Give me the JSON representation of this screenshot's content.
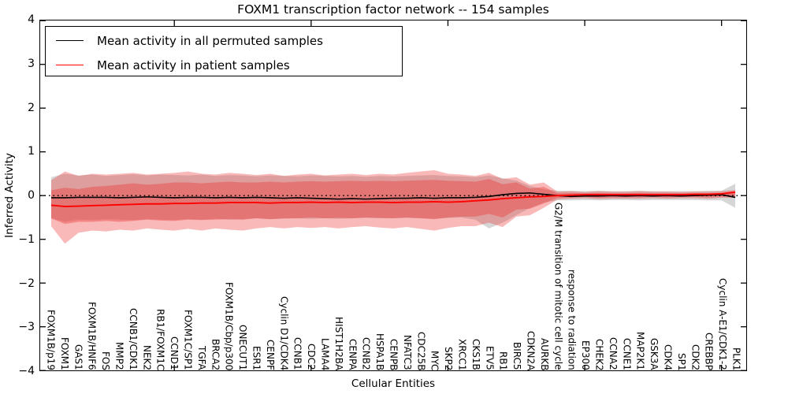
{
  "title": "FOXM1 transcription factor network -- 154 samples",
  "axes": {
    "ylabel": "Inferred Activity",
    "xlabel": "Cellular Entities",
    "ytick_labels": [
      "4",
      "3",
      "2",
      "1",
      "0",
      "−1",
      "−2",
      "−3",
      "−4"
    ]
  },
  "legend": {
    "items": [
      {
        "label": "Mean activity in all permuted samples",
        "color": "#000000"
      },
      {
        "label": "Mean activity in patient samples",
        "color": "#ff0000"
      }
    ],
    "position": "upper left"
  },
  "chart_data": {
    "type": "line",
    "title": "FOXM1 transcription factor network -- 154 samples",
    "xlabel": "Cellular Entities",
    "ylabel": "Inferred Activity",
    "ylim": [
      -4,
      4
    ],
    "yticks": [
      4,
      3,
      2,
      1,
      0,
      -1,
      -2,
      -3,
      -4
    ],
    "major_tick_indices": [
      9,
      19,
      29,
      39,
      49
    ],
    "grid": false,
    "legend_position": "upper left",
    "baseline": {
      "y": 0,
      "style": "dotted",
      "color": "#000000"
    },
    "categories": [
      "FOXM1B/p19",
      "FOXM1",
      "GAS1",
      "FOXM1B/HNF6",
      "FOS",
      "MMP2",
      "CCNB1/CDK1",
      "NEK2",
      "RB1/FOXM1C",
      "CCND1",
      "FOXM1C/SP1",
      "TGFA",
      "BRCA2",
      "FOXM1B/Cbp/p300",
      "ONECUT1",
      "ESR1",
      "CENPF",
      "Cyclin D1/CDK4",
      "CCNB1",
      "CDC2",
      "LAMA4",
      "HIST1H2BA",
      "CENPA",
      "CCNB2",
      "HSPA1B",
      "CENPB",
      "NFATC3",
      "CDC25B",
      "MYC",
      "SKP2",
      "XRCC1",
      "CKS1B",
      "ETV5",
      "RB1",
      "BIRC5",
      "CDKN2A",
      "AURKB",
      "G2/M transition of mitotic cell cycle",
      "response to radiation",
      "EP300",
      "CHEK2",
      "CCNA2",
      "CCNE1",
      "MAP2K1",
      "GSK3A",
      "CDK4",
      "SP1",
      "CDK2",
      "CREBBP",
      "Cyclin A-E1/CDK1-2",
      "PLK1"
    ],
    "series": [
      {
        "name": "Mean activity in all permuted samples",
        "color": "#000000",
        "values": [
          -0.05,
          -0.05,
          -0.04,
          -0.04,
          -0.04,
          -0.05,
          -0.04,
          -0.03,
          -0.04,
          -0.05,
          -0.04,
          -0.04,
          -0.05,
          -0.04,
          -0.05,
          -0.04,
          -0.05,
          -0.06,
          -0.05,
          -0.06,
          -0.07,
          -0.08,
          -0.07,
          -0.08,
          -0.07,
          -0.06,
          -0.06,
          -0.05,
          -0.06,
          -0.05,
          -0.05,
          -0.04,
          -0.02,
          0.02,
          0.05,
          0.06,
          0.03,
          0.0,
          -0.02,
          -0.01,
          -0.01,
          0.0,
          -0.01,
          0.0,
          -0.01,
          0.0,
          -0.01,
          0.0,
          0.01,
          0.02,
          -0.04
        ]
      },
      {
        "name": "Mean activity in patient samples",
        "color": "#ff0000",
        "values": [
          -0.22,
          -0.25,
          -0.24,
          -0.23,
          -0.22,
          -0.21,
          -0.2,
          -0.19,
          -0.19,
          -0.18,
          -0.18,
          -0.17,
          -0.17,
          -0.16,
          -0.16,
          -0.16,
          -0.17,
          -0.16,
          -0.16,
          -0.15,
          -0.16,
          -0.15,
          -0.16,
          -0.15,
          -0.15,
          -0.16,
          -0.15,
          -0.15,
          -0.14,
          -0.15,
          -0.14,
          -0.12,
          -0.1,
          -0.07,
          -0.05,
          -0.03,
          -0.02,
          0.0,
          0.01,
          0.02,
          0.02,
          0.02,
          0.02,
          0.02,
          0.02,
          0.02,
          0.02,
          0.03,
          0.03,
          0.04,
          0.08
        ]
      }
    ],
    "bands": [
      {
        "name": "permuted-samples-std-band",
        "color": "#999999",
        "opacity": 0.4,
        "top": [
          0.42,
          0.5,
          0.46,
          0.48,
          0.45,
          0.47,
          0.49,
          0.46,
          0.48,
          0.47,
          0.46,
          0.48,
          0.45,
          0.47,
          0.46,
          0.44,
          0.46,
          0.45,
          0.44,
          0.46,
          0.45,
          0.44,
          0.45,
          0.43,
          0.45,
          0.44,
          0.45,
          0.46,
          0.47,
          0.45,
          0.44,
          0.42,
          0.46,
          0.4,
          0.34,
          0.22,
          0.14,
          0.11,
          0.11,
          0.1,
          0.11,
          0.1,
          0.1,
          0.11,
          0.1,
          0.1,
          0.1,
          0.1,
          0.11,
          0.11,
          0.27
        ],
        "bottom": [
          -0.52,
          -0.6,
          -0.55,
          -0.56,
          -0.54,
          -0.55,
          -0.56,
          -0.54,
          -0.55,
          -0.56,
          -0.54,
          -0.55,
          -0.53,
          -0.55,
          -0.54,
          -0.52,
          -0.54,
          -0.53,
          -0.52,
          -0.53,
          -0.52,
          -0.53,
          -0.52,
          -0.51,
          -0.52,
          -0.52,
          -0.51,
          -0.52,
          -0.53,
          -0.51,
          -0.5,
          -0.55,
          -0.75,
          -0.62,
          -0.45,
          -0.28,
          -0.16,
          -0.11,
          -0.11,
          -0.1,
          -0.11,
          -0.1,
          -0.1,
          -0.11,
          -0.1,
          -0.1,
          -0.1,
          -0.1,
          -0.11,
          -0.11,
          -0.28
        ]
      },
      {
        "name": "patient-samples-outer-band",
        "color": "#ee3333",
        "opacity": 0.34,
        "top": [
          0.35,
          0.55,
          0.45,
          0.5,
          0.48,
          0.5,
          0.52,
          0.48,
          0.5,
          0.52,
          0.55,
          0.5,
          0.48,
          0.52,
          0.5,
          0.47,
          0.5,
          0.45,
          0.48,
          0.5,
          0.46,
          0.48,
          0.5,
          0.47,
          0.5,
          0.48,
          0.52,
          0.55,
          0.58,
          0.5,
          0.48,
          0.45,
          0.52,
          0.38,
          0.42,
          0.25,
          0.3,
          0.09,
          0.1,
          0.08,
          0.1,
          0.09,
          0.09,
          0.1,
          0.09,
          0.09,
          0.08,
          0.09,
          0.09,
          0.1,
          0.13
        ],
        "bottom": [
          -0.7,
          -1.1,
          -0.85,
          -0.8,
          -0.82,
          -0.78,
          -0.8,
          -0.75,
          -0.78,
          -0.8,
          -0.76,
          -0.8,
          -0.75,
          -0.78,
          -0.8,
          -0.75,
          -0.72,
          -0.75,
          -0.72,
          -0.74,
          -0.72,
          -0.75,
          -0.72,
          -0.7,
          -0.73,
          -0.75,
          -0.72,
          -0.76,
          -0.8,
          -0.74,
          -0.7,
          -0.7,
          -0.62,
          -0.72,
          -0.48,
          -0.45,
          -0.28,
          -0.09,
          -0.07,
          -0.06,
          -0.08,
          -0.07,
          -0.07,
          -0.07,
          -0.06,
          -0.07,
          -0.06,
          -0.06,
          -0.07,
          -0.05,
          -0.05
        ]
      },
      {
        "name": "patient-samples-inner-band",
        "color": "#ee3333",
        "opacity": 0.38,
        "top": [
          0.12,
          0.18,
          0.15,
          0.2,
          0.22,
          0.25,
          0.28,
          0.25,
          0.27,
          0.3,
          0.3,
          0.28,
          0.3,
          0.32,
          0.3,
          0.3,
          0.32,
          0.3,
          0.32,
          0.33,
          0.32,
          0.33,
          0.34,
          0.33,
          0.34,
          0.33,
          0.34,
          0.35,
          0.36,
          0.34,
          0.33,
          0.32,
          0.38,
          0.26,
          0.3,
          0.16,
          0.2,
          0.05,
          0.06,
          0.05,
          0.06,
          0.05,
          0.05,
          0.06,
          0.05,
          0.05,
          0.05,
          0.05,
          0.05,
          0.06,
          0.1
        ],
        "bottom": [
          -0.52,
          -0.65,
          -0.6,
          -0.6,
          -0.58,
          -0.6,
          -0.58,
          -0.55,
          -0.57,
          -0.58,
          -0.55,
          -0.56,
          -0.55,
          -0.54,
          -0.55,
          -0.52,
          -0.54,
          -0.52,
          -0.52,
          -0.5,
          -0.52,
          -0.51,
          -0.52,
          -0.5,
          -0.51,
          -0.52,
          -0.5,
          -0.52,
          -0.54,
          -0.5,
          -0.48,
          -0.48,
          -0.42,
          -0.5,
          -0.32,
          -0.3,
          -0.18,
          -0.05,
          -0.04,
          -0.03,
          -0.05,
          -0.04,
          -0.04,
          -0.04,
          -0.03,
          -0.04,
          -0.03,
          -0.03,
          -0.04,
          -0.03,
          -0.02
        ]
      }
    ]
  }
}
